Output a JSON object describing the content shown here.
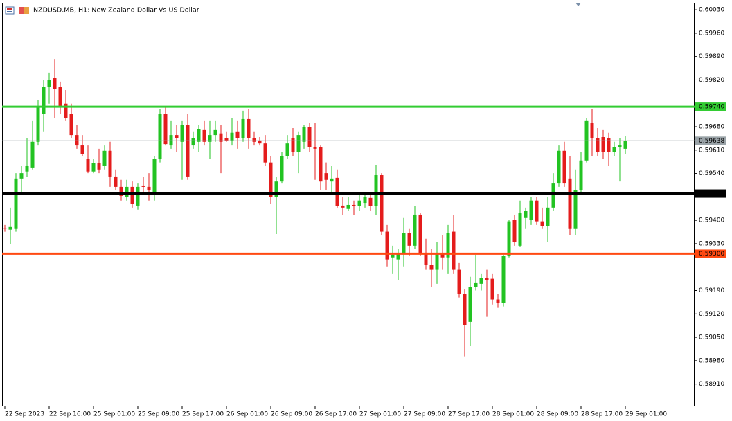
{
  "chart_data": {
    "type": "candlestick",
    "title": "NZDUSD.MB, H1:  New Zealand Dollar Vs US Dollar",
    "up_color": "#22c322",
    "down_color": "#e41c1c",
    "ylim": [
      0.58845,
      0.60051
    ],
    "yticks": [
      {
        "value": 0.6003,
        "label": "0.60030"
      },
      {
        "value": 0.5996,
        "label": "0.59960"
      },
      {
        "value": 0.5989,
        "label": "0.59890"
      },
      {
        "value": 0.5982,
        "label": "0.59820"
      },
      {
        "value": 0.5968,
        "label": "0.59680"
      },
      {
        "value": 0.5961,
        "label": "0.59610"
      },
      {
        "value": 0.5954,
        "label": "0.59540"
      },
      {
        "value": 0.594,
        "label": "0.59400"
      },
      {
        "value": 0.5933,
        "label": "0.59330"
      },
      {
        "value": 0.5919,
        "label": "0.59190"
      },
      {
        "value": 0.5912,
        "label": "0.59120"
      },
      {
        "value": 0.5905,
        "label": "0.59050"
      },
      {
        "value": 0.5898,
        "label": "0.58980"
      },
      {
        "value": 0.5891,
        "label": "0.58910"
      }
    ],
    "hlines": [
      {
        "value": 0.5974,
        "label": "0.59740",
        "color": "#33cc33"
      },
      {
        "value": 0.5948,
        "label": "0.59480",
        "color": "#000000"
      },
      {
        "value": 0.593,
        "label": "0.59300",
        "color": "#ff4a12"
      }
    ],
    "current_price": {
      "value": 0.59638,
      "label": "0.59638",
      "color": "#9aa3a8"
    },
    "categories": [
      "22 Sep 2023",
      null,
      null,
      null,
      null,
      null,
      null,
      null,
      "22 Sep 16:00",
      null,
      null,
      null,
      null,
      null,
      null,
      null,
      "25 Sep 01:00",
      null,
      null,
      null,
      null,
      null,
      null,
      null,
      "25 Sep 09:00",
      null,
      null,
      null,
      null,
      null,
      null,
      null,
      "25 Sep 17:00",
      null,
      null,
      null,
      null,
      null,
      null,
      null,
      "26 Sep 01:00",
      null,
      null,
      null,
      null,
      null,
      null,
      null,
      "26 Sep 09:00",
      null,
      null,
      null,
      null,
      null,
      null,
      null,
      "26 Sep 17:00",
      null,
      null,
      null,
      null,
      null,
      null,
      null,
      "27 Sep 01:00",
      null,
      null,
      null,
      null,
      null,
      null,
      null,
      "27 Sep 09:00",
      null,
      null,
      null,
      null,
      null,
      null,
      null,
      "27 Sep 17:00",
      null,
      null,
      null,
      null,
      null,
      null,
      null,
      "28 Sep 01:00",
      null,
      null,
      null,
      null,
      null,
      null,
      null,
      "28 Sep 09:00",
      null,
      null,
      null,
      null,
      null,
      null,
      null,
      "28 Sep 17:00",
      null,
      null,
      null,
      null,
      null,
      null,
      null,
      "29 Sep 01:00"
    ],
    "open": [
      0.59376,
      0.59372,
      0.59376,
      0.59525,
      0.59546,
      0.59558,
      0.59635,
      0.59718,
      0.598,
      0.59827,
      0.598,
      0.59749,
      0.59718,
      0.59655,
      0.59624,
      0.59583,
      0.59546,
      0.59571,
      0.59562,
      0.59608,
      0.59531,
      0.595,
      0.59469,
      0.595,
      0.59444,
      0.59504,
      0.595,
      0.59479,
      0.59583,
      0.59718,
      0.59624,
      0.59655,
      0.59635,
      0.59686,
      0.59624,
      0.59635,
      0.5967,
      0.59635,
      0.59655,
      0.5966,
      0.59645,
      0.59639,
      0.59666,
      0.59645,
      0.59703,
      0.59645,
      0.59639,
      0.5963,
      0.59573,
      0.59469,
      0.59516,
      0.59593,
      0.59645,
      0.59604,
      0.59635,
      0.5968,
      0.5962,
      0.59618,
      0.59541,
      0.59516,
      0.59527,
      0.59444,
      0.59434,
      0.59446,
      0.59442,
      0.59452,
      0.59467,
      0.59442,
      0.59535,
      0.59366,
      0.59289,
      0.59283,
      0.59303,
      0.59361,
      0.59324,
      0.59417,
      0.59303,
      0.59266,
      0.59252,
      0.59299,
      0.59289,
      0.59366,
      0.59252,
      0.59179,
      0.59096,
      0.592,
      0.5921,
      0.59227,
      0.59225,
      0.59163,
      0.59152,
      0.59293,
      0.59401,
      0.59324,
      0.59407,
      0.59401,
      0.59459,
      0.59397,
      0.59382,
      0.59438,
      0.5951,
      0.59608,
      0.59525,
      0.59376,
      0.5949,
      0.59579,
      0.59691,
      0.59645,
      0.59649,
      0.59645,
      0.59604,
      0.5962,
      0.59614
    ],
    "high": [
      0.59386,
      0.59438,
      0.59541,
      0.59562,
      0.59645,
      0.59697,
      0.59759,
      0.59821,
      0.59842,
      0.59883,
      0.59815,
      0.5979,
      0.59749,
      0.59686,
      0.59655,
      0.59624,
      0.59583,
      0.59614,
      0.59624,
      0.59635,
      0.59552,
      0.59521,
      0.59521,
      0.59516,
      0.5951,
      0.59531,
      0.59541,
      0.59593,
      0.59732,
      0.59738,
      0.59697,
      0.59686,
      0.59697,
      0.59718,
      0.59666,
      0.59686,
      0.59697,
      0.59697,
      0.59697,
      0.59686,
      0.59666,
      0.59707,
      0.59697,
      0.59728,
      0.59732,
      0.59666,
      0.59649,
      0.59655,
      0.59593,
      0.59531,
      0.59604,
      0.59655,
      0.59676,
      0.59666,
      0.59686,
      0.59691,
      0.59691,
      0.59624,
      0.59573,
      0.59562,
      0.59552,
      0.59469,
      0.59469,
      0.59459,
      0.59479,
      0.59479,
      0.59479,
      0.59566,
      0.59541,
      0.59386,
      0.59324,
      0.59314,
      0.59407,
      0.59376,
      0.59442,
      0.59421,
      0.59345,
      0.59314,
      0.59334,
      0.59355,
      0.59386,
      0.59417,
      0.59272,
      0.59194,
      0.59231,
      0.59297,
      0.59241,
      0.59252,
      0.59241,
      0.59179,
      0.59297,
      0.59401,
      0.59417,
      0.59459,
      0.59438,
      0.59469,
      0.59469,
      0.59438,
      0.59469,
      0.59541,
      0.59624,
      0.59635,
      0.59593,
      0.59552,
      0.59604,
      0.59707,
      0.59732,
      0.59676,
      0.5967,
      0.59662,
      0.59635,
      0.59645,
      0.59651
    ],
    "low": [
      0.59366,
      0.5933,
      0.59366,
      0.59475,
      0.59531,
      0.59552,
      0.59624,
      0.59666,
      0.59749,
      0.59707,
      0.59718,
      0.59697,
      0.59645,
      0.59614,
      0.59593,
      0.59541,
      0.59541,
      0.59541,
      0.59552,
      0.595,
      0.5949,
      0.59459,
      0.59459,
      0.59438,
      0.59432,
      0.59479,
      0.59459,
      0.59459,
      0.59573,
      0.59624,
      0.59614,
      0.59604,
      0.59521,
      0.59521,
      0.59614,
      0.59604,
      0.59624,
      0.59583,
      0.59635,
      0.59541,
      0.59635,
      0.59624,
      0.59614,
      0.59635,
      0.59614,
      0.59624,
      0.59624,
      0.59562,
      0.59448,
      0.59359,
      0.5951,
      0.59583,
      0.59593,
      0.59541,
      0.59614,
      0.59604,
      0.59521,
      0.5949,
      0.5949,
      0.59479,
      0.59438,
      0.59417,
      0.59428,
      0.59417,
      0.59428,
      0.59438,
      0.59428,
      0.59417,
      0.59355,
      0.59262,
      0.59241,
      0.59221,
      0.59262,
      0.59293,
      0.59314,
      0.59293,
      0.59252,
      0.592,
      0.5921,
      0.59252,
      0.59241,
      0.59241,
      0.59169,
      0.58993,
      0.59024,
      0.5919,
      0.5919,
      0.59111,
      0.59148,
      0.59138,
      0.59142,
      0.59289,
      0.59324,
      0.5932,
      0.59376,
      0.59386,
      0.59386,
      0.59376,
      0.59334,
      0.59428,
      0.595,
      0.595,
      0.59355,
      0.59355,
      0.59484,
      0.59573,
      0.59593,
      0.59593,
      0.59583,
      0.59562,
      0.59593,
      0.59516,
      0.59599
    ],
    "close": [
      0.59374,
      0.5938,
      0.59525,
      0.59541,
      0.59562,
      0.59635,
      0.59738,
      0.598,
      0.59821,
      0.59794,
      0.59738,
      0.59707,
      0.59655,
      0.59624,
      0.59599,
      0.59546,
      0.59571,
      0.59552,
      0.59608,
      0.59531,
      0.595,
      0.59473,
      0.595,
      0.59448,
      0.595,
      0.595,
      0.5949,
      0.59583,
      0.59718,
      0.59628,
      0.59655,
      0.59645,
      0.59686,
      0.59531,
      0.59645,
      0.59672,
      0.59635,
      0.59655,
      0.5967,
      0.59635,
      0.59639,
      0.59662,
      0.59645,
      0.59703,
      0.59645,
      0.59635,
      0.5963,
      0.59573,
      0.59469,
      0.59516,
      0.59593,
      0.5963,
      0.59604,
      0.59655,
      0.5968,
      0.59618,
      0.59614,
      0.59516,
      0.59521,
      0.59525,
      0.59442,
      0.59438,
      0.59446,
      0.59442,
      0.59459,
      0.59469,
      0.59442,
      0.59535,
      0.59366,
      0.59283,
      0.59297,
      0.59301,
      0.59361,
      0.59324,
      0.59417,
      0.59303,
      0.59266,
      0.59252,
      0.59303,
      0.59289,
      0.59361,
      0.59252,
      0.59179,
      0.59086,
      0.592,
      0.59214,
      0.59227,
      0.59221,
      0.59163,
      0.59152,
      0.59293,
      0.59397,
      0.59334,
      0.59421,
      0.59428,
      0.59459,
      0.59397,
      0.59382,
      0.59438,
      0.5951,
      0.59608,
      0.5951,
      0.59376,
      0.5949,
      0.59579,
      0.59697,
      0.59645,
      0.59604,
      0.59604,
      0.59604,
      0.5962,
      0.59624,
      0.59638
    ]
  }
}
